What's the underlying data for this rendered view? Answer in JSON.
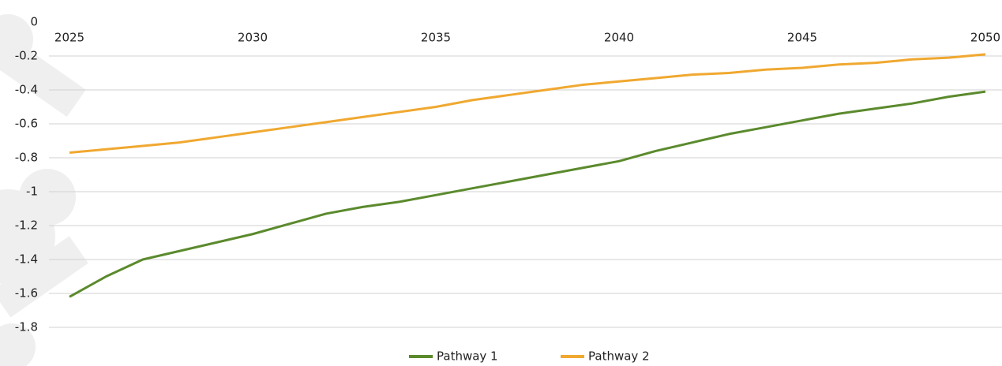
{
  "chart_data": {
    "type": "line",
    "x": [
      2025,
      2026,
      2027,
      2028,
      2029,
      2030,
      2031,
      2032,
      2033,
      2034,
      2035,
      2036,
      2037,
      2038,
      2039,
      2040,
      2041,
      2042,
      2043,
      2044,
      2045,
      2046,
      2047,
      2048,
      2049,
      2050
    ],
    "series": [
      {
        "name": "Pathway 1",
        "color": "#5b8a2d",
        "values": [
          -1.62,
          -1.5,
          -1.4,
          -1.35,
          -1.3,
          -1.25,
          -1.19,
          -1.13,
          -1.09,
          -1.06,
          -1.02,
          -0.98,
          -0.94,
          -0.9,
          -0.86,
          -0.82,
          -0.76,
          -0.71,
          -0.66,
          -0.62,
          -0.58,
          -0.54,
          -0.51,
          -0.48,
          -0.44,
          -0.41
        ]
      },
      {
        "name": "Pathway 2",
        "color": "#f0a830",
        "values": [
          -0.77,
          -0.75,
          -0.73,
          -0.71,
          -0.68,
          -0.65,
          -0.62,
          -0.59,
          -0.56,
          -0.53,
          -0.5,
          -0.46,
          -0.43,
          -0.4,
          -0.37,
          -0.35,
          -0.33,
          -0.31,
          -0.3,
          -0.28,
          -0.27,
          -0.25,
          -0.24,
          -0.22,
          -0.21,
          -0.19
        ]
      }
    ],
    "xlim": [
      2025,
      2050
    ],
    "xticks": [
      2025,
      2030,
      2035,
      2040,
      2045,
      2050
    ],
    "ylim": [
      -1.8,
      0
    ],
    "yticks": [
      0,
      -0.2,
      -0.4,
      -0.6,
      -0.8,
      -1,
      -1.2,
      -1.4,
      -1.6,
      -1.8
    ],
    "grid": true
  }
}
